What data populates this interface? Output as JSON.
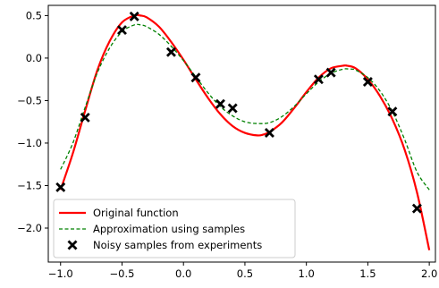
{
  "chart_data": {
    "type": "line",
    "title": "",
    "xlabel": "",
    "ylabel": "",
    "xlim": [
      -1.1,
      2.05
    ],
    "ylim": [
      -2.4,
      0.62
    ],
    "xticks": [
      -1.0,
      -0.5,
      0.0,
      0.5,
      1.0,
      1.5,
      2.0
    ],
    "xtick_labels": [
      "−1.0",
      "−0.5",
      "0.0",
      "0.5",
      "1.0",
      "1.5",
      "2.0"
    ],
    "yticks": [
      0.5,
      0.0,
      -0.5,
      -1.0,
      -1.5,
      -2.0
    ],
    "ytick_labels": [
      "0.5",
      "0.0",
      "−0.5",
      "−1.0",
      "−1.5",
      "−2.0"
    ],
    "grid": false,
    "legend_position": "lower-left",
    "series": [
      {
        "name": "Original function",
        "style": "solid",
        "color": "#ff0000",
        "x": [
          -1.0,
          -0.9,
          -0.8,
          -0.7,
          -0.6,
          -0.5,
          -0.4,
          -0.35,
          -0.3,
          -0.2,
          -0.1,
          0.0,
          0.1,
          0.2,
          0.3,
          0.4,
          0.5,
          0.6,
          0.65,
          0.7,
          0.8,
          0.9,
          1.0,
          1.1,
          1.2,
          1.3,
          1.33,
          1.4,
          1.5,
          1.6,
          1.7,
          1.8,
          1.9,
          2.0
        ],
        "y": [
          -1.55,
          -1.12,
          -0.62,
          -0.14,
          0.2,
          0.42,
          0.5,
          0.5,
          0.48,
          0.37,
          0.19,
          -0.02,
          -0.25,
          -0.47,
          -0.66,
          -0.8,
          -0.88,
          -0.91,
          -0.9,
          -0.87,
          -0.76,
          -0.59,
          -0.4,
          -0.23,
          -0.12,
          -0.09,
          -0.09,
          -0.12,
          -0.25,
          -0.45,
          -0.72,
          -1.08,
          -1.58,
          -2.26
        ]
      },
      {
        "name": "Approximation using samples",
        "style": "dashed",
        "color": "#008000",
        "x": [
          -1.0,
          -0.9,
          -0.8,
          -0.7,
          -0.6,
          -0.5,
          -0.4,
          -0.35,
          -0.3,
          -0.2,
          -0.1,
          0.0,
          0.1,
          0.2,
          0.3,
          0.4,
          0.5,
          0.6,
          0.7,
          0.8,
          0.9,
          1.0,
          1.1,
          1.2,
          1.3,
          1.35,
          1.4,
          1.5,
          1.6,
          1.7,
          1.8,
          1.9,
          2.0
        ],
        "y": [
          -1.31,
          -1.0,
          -0.58,
          -0.17,
          0.12,
          0.31,
          0.39,
          0.39,
          0.37,
          0.28,
          0.14,
          -0.03,
          -0.22,
          -0.41,
          -0.57,
          -0.68,
          -0.75,
          -0.77,
          -0.76,
          -0.69,
          -0.57,
          -0.42,
          -0.28,
          -0.18,
          -0.13,
          -0.13,
          -0.14,
          -0.23,
          -0.39,
          -0.63,
          -0.96,
          -1.34,
          -1.55
        ]
      },
      {
        "name": "Noisy samples from experiments",
        "style": "marker",
        "color": "#000000",
        "x": [
          -1.0,
          -0.8,
          -0.5,
          -0.4,
          -0.1,
          0.1,
          0.3,
          0.4,
          0.7,
          1.1,
          1.2,
          1.5,
          1.7,
          1.9
        ],
        "y": [
          -1.52,
          -0.7,
          0.33,
          0.49,
          0.07,
          -0.23,
          -0.54,
          -0.59,
          -0.88,
          -0.25,
          -0.17,
          -0.28,
          -0.63,
          -1.77
        ]
      }
    ]
  }
}
